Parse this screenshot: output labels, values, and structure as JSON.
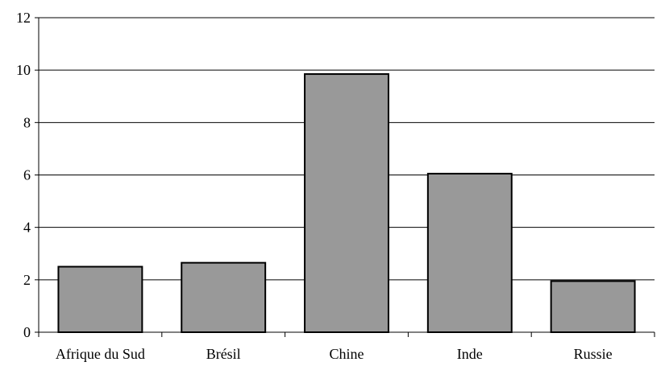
{
  "chart_data": {
    "type": "bar",
    "title": "",
    "xlabel": "",
    "ylabel": "",
    "categories": [
      "Afrique du Sud",
      "Brésil",
      "Chine",
      "Inde",
      "Russie"
    ],
    "values": [
      2.5,
      2.65,
      9.85,
      6.05,
      1.95
    ],
    "ylim": [
      0,
      12
    ],
    "y_ticks": [
      "0",
      "2",
      "4",
      "6",
      "8",
      "10",
      "12"
    ],
    "grid": true,
    "legend": "none",
    "bar_color": "#999999"
  }
}
